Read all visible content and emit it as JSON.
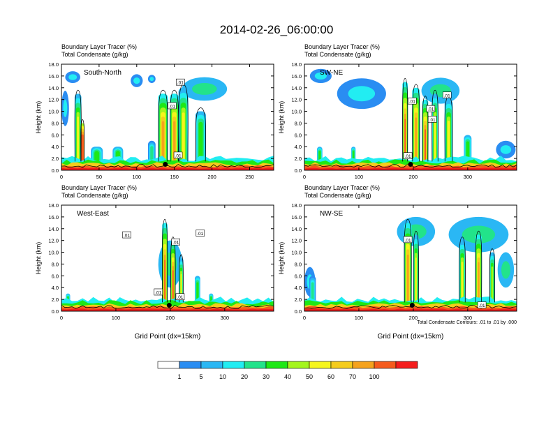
{
  "page_title": "2014-02-26_06:00:00",
  "legend": {
    "colors": [
      "#ffffff",
      "#2a8df2",
      "#2ab7f4",
      "#22edf2",
      "#22e38a",
      "#1ee816",
      "#a4f51c",
      "#f5f51c",
      "#f5cc1c",
      "#f5a21c",
      "#f55a1c",
      "#f51c1c"
    ],
    "labels": [
      "1",
      "5",
      "10",
      "20",
      "30",
      "40",
      "50",
      "60",
      "70",
      "100"
    ]
  },
  "contour_note": "Total Condensate Contours: .01 to .01 by .000",
  "chart_data": [
    {
      "type": "heatmap",
      "panel_label": "South-North",
      "title_lines": [
        "Boundary Layer Tracer   (%)",
        "Total Condensate   (g/kg)"
      ],
      "ylabel": "Height (km)",
      "xlabel": "",
      "yticks": [
        "0.0",
        "2.0",
        "4.0",
        "6.0",
        "8.0",
        "10.0",
        "12.0",
        "14.0",
        "16.0",
        "18.0"
      ],
      "xticks": [
        "0",
        "50",
        "100",
        "150",
        "200",
        "250"
      ],
      "xtick_values": [
        0,
        50,
        100,
        150,
        200,
        250
      ],
      "xlim": [
        0,
        282
      ],
      "ylim": [
        0,
        18
      ],
      "contour_labels": [
        {
          "text": ".01",
          "x": 158,
          "y": 14.9
        },
        {
          "text": ".01",
          "x": 147,
          "y": 10.9
        },
        {
          "text": ".01",
          "x": 155,
          "y": 2.5
        }
      ],
      "marker": {
        "x": 138,
        "y": 1.0
      },
      "plumes": [
        {
          "x": 22,
          "w": 9,
          "h": 13,
          "cb": 2,
          "c": 6
        },
        {
          "x": 28,
          "w": 5,
          "h": 8,
          "cb": 6,
          "c": 10
        },
        {
          "x": 47,
          "w": 16,
          "h": 4,
          "cb": 2,
          "c": 4
        },
        {
          "x": 75,
          "w": 14,
          "h": 4,
          "cb": 2,
          "c": 4
        },
        {
          "x": 120,
          "w": 10,
          "h": 5,
          "cb": 1,
          "c": 4
        },
        {
          "x": 135,
          "w": 13,
          "h": 13,
          "cb": 3,
          "c": 7
        },
        {
          "x": 150,
          "w": 12,
          "h": 13,
          "cb": 3,
          "c": 7
        },
        {
          "x": 162,
          "w": 13,
          "h": 14,
          "cb": 2,
          "c": 6
        },
        {
          "x": 185,
          "w": 14,
          "h": 10,
          "cb": 2,
          "c": 4
        }
      ],
      "blobs": [
        {
          "x": 100,
          "y": 15.2,
          "rx": 8,
          "ry": 1.1,
          "c": 1
        },
        {
          "x": 190,
          "y": 13.8,
          "rx": 30,
          "ry": 2,
          "c": 2
        },
        {
          "x": 120,
          "y": 15.5,
          "rx": 5,
          "ry": 0.7,
          "c": 1
        },
        {
          "x": 5,
          "y": 10.5,
          "rx": 5,
          "ry": 3,
          "c": 1
        },
        {
          "x": 15,
          "y": 15.8,
          "rx": 10,
          "ry": 1.0,
          "c": 1
        }
      ]
    },
    {
      "type": "heatmap",
      "panel_label": "SW-NE",
      "title_lines": [
        "Boundary Layer Tracer   (%)",
        "Total Condensate   (g/kg)"
      ],
      "ylabel": "Height (km)",
      "xlabel": "",
      "yticks": [
        "0.0",
        "2.0",
        "4.0",
        "6.0",
        "8.0",
        "10.0",
        "12.0",
        "14.0",
        "16.0",
        "18.0"
      ],
      "xticks": [
        "0",
        "100",
        "200",
        "300"
      ],
      "xtick_values": [
        0,
        100,
        200,
        300
      ],
      "xlim": [
        0,
        390
      ],
      "ylim": [
        0,
        18
      ],
      "contour_labels": [
        {
          "text": ".01",
          "x": 198,
          "y": 11.7
        },
        {
          "text": ".01",
          "x": 232,
          "y": 10.4
        },
        {
          "text": ".01",
          "x": 235,
          "y": 8.6
        },
        {
          "text": ".01",
          "x": 262,
          "y": 12.7
        },
        {
          "text": ".01",
          "x": 190,
          "y": 2.4
        }
      ],
      "marker": {
        "x": 195,
        "y": 1.0
      },
      "plumes": [
        {
          "x": 28,
          "w": 10,
          "h": 4,
          "cb": 2,
          "c": 4
        },
        {
          "x": 90,
          "w": 8,
          "h": 4,
          "cb": 2,
          "c": 4
        },
        {
          "x": 185,
          "w": 10,
          "h": 15,
          "cb": 3,
          "c": 8
        },
        {
          "x": 205,
          "w": 14,
          "h": 14,
          "cb": 3,
          "c": 7
        },
        {
          "x": 222,
          "w": 11,
          "h": 12,
          "cb": 3,
          "c": 8
        },
        {
          "x": 240,
          "w": 12,
          "h": 13,
          "cb": 2,
          "c": 6
        },
        {
          "x": 265,
          "w": 15,
          "h": 12,
          "cb": 2,
          "c": 6
        },
        {
          "x": 300,
          "w": 14,
          "h": 6,
          "cb": 2,
          "c": 4
        }
      ],
      "blobs": [
        {
          "x": 105,
          "y": 13,
          "rx": 45,
          "ry": 2.6,
          "c": 1
        },
        {
          "x": 30,
          "y": 16,
          "rx": 20,
          "ry": 1.2,
          "c": 1
        },
        {
          "x": 250,
          "y": 13.5,
          "rx": 35,
          "ry": 2.2,
          "c": 2
        },
        {
          "x": 370,
          "y": 3.5,
          "rx": 18,
          "ry": 1.5,
          "c": 1
        }
      ]
    },
    {
      "type": "heatmap",
      "panel_label": "West-East",
      "title_lines": [
        "Boundary Layer Tracer   (%)",
        "Total Condensate   (g/kg)"
      ],
      "ylabel": "Height (km)",
      "xlabel": "Grid Point (dx=15km)",
      "yticks": [
        "0.0",
        "2.0",
        "4.0",
        "6.0",
        "8.0",
        "10.0",
        "12.0",
        "14.0",
        "16.0",
        "18.0"
      ],
      "xticks": [
        "0",
        "100",
        "200",
        "300"
      ],
      "xtick_values": [
        0,
        100,
        200,
        300
      ],
      "xlim": [
        0,
        390
      ],
      "ylim": [
        0,
        18
      ],
      "contour_labels": [
        {
          "text": ".01",
          "x": 120,
          "y": 12.9
        },
        {
          "text": ".01",
          "x": 210,
          "y": 11.7
        },
        {
          "text": ".01",
          "x": 255,
          "y": 13.2
        },
        {
          "text": ".01",
          "x": 178,
          "y": 3.2
        },
        {
          "text": ".01",
          "x": 218,
          "y": 2.4
        }
      ],
      "marker": {
        "x": 198,
        "y": 1.0
      },
      "plumes": [
        {
          "x": 12,
          "w": 8,
          "h": 3,
          "cb": 2,
          "c": 4
        },
        {
          "x": 190,
          "w": 10,
          "h": 15,
          "cb": 3,
          "c": 8
        },
        {
          "x": 205,
          "w": 9,
          "h": 12,
          "cb": 3,
          "c": 8
        },
        {
          "x": 220,
          "w": 8,
          "h": 9,
          "cb": 2,
          "c": 6
        },
        {
          "x": 250,
          "w": 10,
          "h": 6,
          "cb": 2,
          "c": 4
        },
        {
          "x": 275,
          "w": 8,
          "h": 3,
          "cb": 2,
          "c": 4
        }
      ],
      "blobs": [
        {
          "x": 200,
          "y": 8,
          "rx": 22,
          "ry": 4,
          "c": 2
        }
      ]
    },
    {
      "type": "heatmap",
      "panel_label": "NW-SE",
      "title_lines": [
        "Boundary Layer Tracer   (%)",
        "Total Condensate   (g/kg)"
      ],
      "ylabel": "Height (km)",
      "xlabel": "Grid Point (dx=15km)",
      "yticks": [
        "0.0",
        "2.0",
        "4.0",
        "6.0",
        "8.0",
        "10.0",
        "12.0",
        "14.0",
        "16.0",
        "18.0"
      ],
      "xticks": [
        "0",
        "100",
        "200",
        "300"
      ],
      "xtick_values": [
        0,
        100,
        200,
        300
      ],
      "xlim": [
        0,
        390
      ],
      "ylim": [
        0,
        18
      ],
      "contour_labels": [
        {
          "text": ".01",
          "x": 190,
          "y": 12.1
        },
        {
          "text": ".01",
          "x": 326,
          "y": 1.0
        }
      ],
      "marker": {
        "x": 198,
        "y": 1.0
      },
      "plumes": [
        {
          "x": 15,
          "w": 12,
          "h": 6,
          "cb": 1,
          "c": 4
        },
        {
          "x": 190,
          "w": 14,
          "h": 15,
          "cb": 3,
          "c": 7
        },
        {
          "x": 205,
          "w": 10,
          "h": 13,
          "cb": 2,
          "c": 6
        },
        {
          "x": 290,
          "w": 12,
          "h": 12,
          "cb": 2,
          "c": 6
        },
        {
          "x": 320,
          "w": 12,
          "h": 13,
          "cb": 3,
          "c": 7
        },
        {
          "x": 345,
          "w": 10,
          "h": 10,
          "cb": 2,
          "c": 5
        }
      ],
      "blobs": [
        {
          "x": 205,
          "y": 13.5,
          "rx": 35,
          "ry": 2.5,
          "c": 2
        },
        {
          "x": 320,
          "y": 13,
          "rx": 55,
          "ry": 3,
          "c": 2
        },
        {
          "x": 10,
          "y": 5,
          "rx": 10,
          "ry": 2.5,
          "c": 1
        },
        {
          "x": 370,
          "y": 7,
          "rx": 15,
          "ry": 3,
          "c": 2
        }
      ]
    }
  ]
}
